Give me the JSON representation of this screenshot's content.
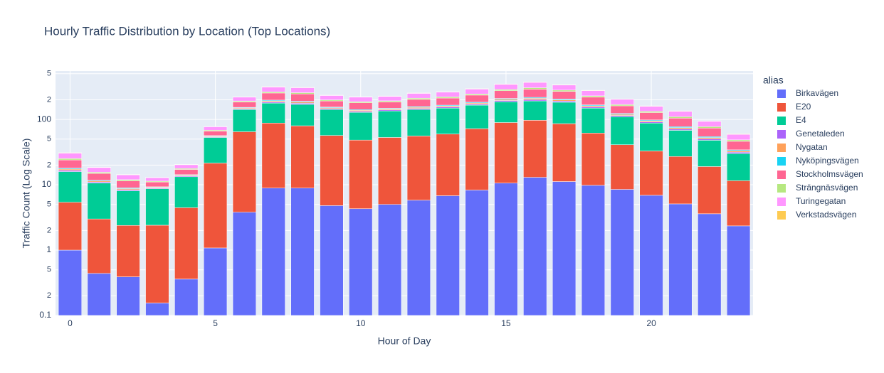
{
  "chart_data": {
    "type": "bar",
    "stacked": true,
    "log_y": true,
    "grid": true,
    "title": "Hourly Traffic Distribution by Location (Top Locations)",
    "x_label": "Hour of Day",
    "y_label": "Traffic Count (Log Scale)",
    "legend_title": "alias",
    "x": [
      0,
      1,
      2,
      3,
      4,
      5,
      6,
      7,
      8,
      9,
      10,
      11,
      12,
      13,
      14,
      15,
      16,
      17,
      18,
      19,
      20,
      21,
      22,
      23
    ],
    "xlim": [
      -0.5,
      23.5
    ],
    "xticks": [
      0,
      5,
      10,
      15,
      20
    ],
    "ylim": [
      0.1,
      550
    ],
    "yticks": [
      0.1,
      {
        "value": 0.2,
        "label": "2"
      },
      {
        "value": 0.5,
        "label": "5"
      },
      1,
      {
        "value": 2,
        "label": "2"
      },
      {
        "value": 5,
        "label": "5"
      },
      10,
      {
        "value": 20,
        "label": "2"
      },
      {
        "value": 50,
        "label": "5"
      },
      100,
      {
        "value": 200,
        "label": "2"
      },
      {
        "value": 500,
        "label": "5"
      }
    ],
    "series": [
      {
        "name": "Birkavägen",
        "color": "#636efa",
        "values": [
          1,
          0.44,
          0.39,
          0.155,
          0.36,
          1.08,
          3.8,
          8.9,
          8.9,
          4.8,
          4.3,
          5,
          5.8,
          6.8,
          8.3,
          10.6,
          13,
          11.2,
          9.8,
          8.5,
          6.9,
          5.1,
          3.6,
          2.35
        ]
      },
      {
        "name": "E20",
        "color": "#ef553b",
        "values": [
          4.4,
          2.56,
          2,
          2.25,
          4.1,
          20.4,
          61,
          79,
          71,
          52,
          44,
          48,
          50,
          53,
          64,
          79,
          84,
          75,
          52,
          32.5,
          26,
          22,
          15.4,
          9.2
        ]
      },
      {
        "name": "E4",
        "color": "#00cc96",
        "values": [
          10.5,
          7.6,
          5.7,
          6.3,
          8.8,
          31.5,
          77,
          90,
          90,
          85,
          80,
          82,
          86,
          89,
          93,
          97,
          95,
          97,
          87,
          69,
          55,
          41,
          29,
          18.5
        ]
      },
      {
        "name": "Genetaleden",
        "color": "#ab63fa",
        "values": [
          0.75,
          0.4,
          0.32,
          0.22,
          0.36,
          1.25,
          4,
          7,
          7,
          4.7,
          4.7,
          4.7,
          5.6,
          5.9,
          6.5,
          8.2,
          9.2,
          7.9,
          6.5,
          4.8,
          3.7,
          3.4,
          2.4,
          1.5
        ]
      },
      {
        "name": "Nygatan",
        "color": "#ffa15a",
        "values": [
          0.75,
          0.4,
          0.32,
          0.22,
          0.36,
          1.25,
          4,
          7,
          7,
          4.7,
          4.7,
          4.7,
          5.6,
          5.9,
          6.5,
          8.2,
          9.2,
          7.9,
          6.5,
          4.8,
          3.7,
          3.4,
          2.4,
          1.5
        ]
      },
      {
        "name": "Nyköpingsvägen",
        "color": "#19d3f3",
        "values": [
          0.6,
          0.32,
          0.25,
          0.17,
          0.29,
          1,
          3.2,
          5.6,
          5.6,
          3.7,
          3.8,
          3.7,
          4.5,
          4.7,
          5.2,
          6.5,
          7.3,
          6.3,
          5.2,
          3.8,
          2.9,
          2.7,
          1.9,
          1.2
        ]
      },
      {
        "name": "Stockholmsvägen",
        "color": "#ff6692",
        "values": [
          6,
          3.2,
          2.5,
          1.7,
          2.9,
          10,
          32,
          56,
          56,
          37,
          38,
          37,
          45,
          47,
          52,
          65,
          73,
          63,
          52,
          38,
          29,
          27,
          19,
          12
        ]
      },
      {
        "name": "Strängnäsvägen",
        "color": "#b6e880",
        "values": [
          1.2,
          0.63,
          0.5,
          0.34,
          0.58,
          2,
          6.4,
          11,
          11.2,
          7.4,
          7.5,
          7.4,
          9,
          9.4,
          10,
          13,
          14.6,
          12.6,
          10.4,
          7.7,
          5.8,
          5.4,
          3.8,
          2.4
        ]
      },
      {
        "name": "Turingegatan",
        "color": "#ff97ff",
        "values": [
          5.3,
          2.8,
          2.2,
          1.5,
          2.5,
          8.8,
          28,
          49,
          49,
          33,
          33,
          33,
          39,
          41,
          46,
          57,
          64,
          55,
          46,
          34,
          26,
          23,
          16,
          10.5
        ]
      },
      {
        "name": "Verkstadsvägen",
        "color": "#fecb52",
        "values": [
          0.45,
          0.24,
          0.19,
          0.13,
          0.22,
          0.75,
          2.4,
          4.2,
          4.2,
          2.8,
          2.8,
          2.8,
          3.4,
          3.5,
          3.9,
          4.9,
          5.5,
          4.7,
          3.9,
          2.9,
          2.2,
          2,
          1.4,
          0.9
        ]
      }
    ]
  }
}
